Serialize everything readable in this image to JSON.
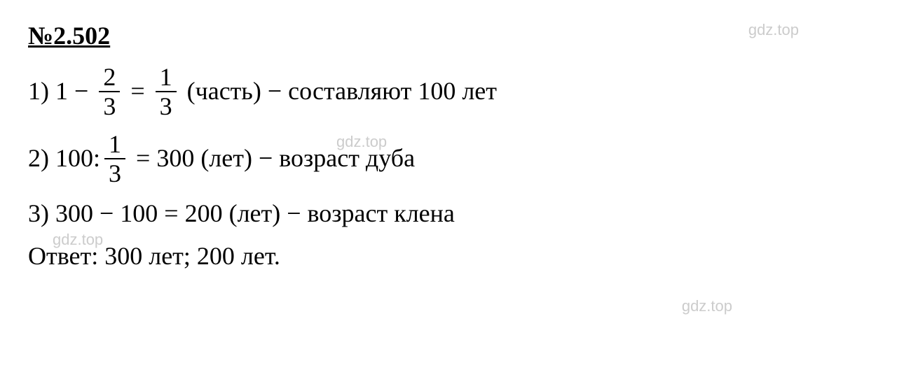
{
  "problem": {
    "number": "№2.502"
  },
  "line1": {
    "step_num": "1) ",
    "one": "1",
    "minus": " − ",
    "frac1_num": "2",
    "frac1_den": "3",
    "equals": " = ",
    "frac2_num": "1",
    "frac2_den": "3",
    "description": " (часть) − составляют 100 лет"
  },
  "line2": {
    "step_num": "2) ",
    "hundred": "100:",
    "frac_num": "1",
    "frac_den": "3",
    "equals_result": " = 300 (лет) − возраст дуба"
  },
  "line3": {
    "text": "3) 300 − 100 = 200 (лет) − возраст клена"
  },
  "answer": {
    "text": "Ответ: 300 лет; 200 лет."
  },
  "watermarks": {
    "wm1": "gdz.top",
    "wm2": "gdz.top",
    "wm3": "gdz.top",
    "wm4": "gdz.top"
  },
  "colors": {
    "text": "#000000",
    "watermark": "#cccccc",
    "background": "#ffffff"
  },
  "typography": {
    "main_fontsize": 36,
    "font_family": "Times New Roman",
    "watermark_fontsize": 22
  }
}
